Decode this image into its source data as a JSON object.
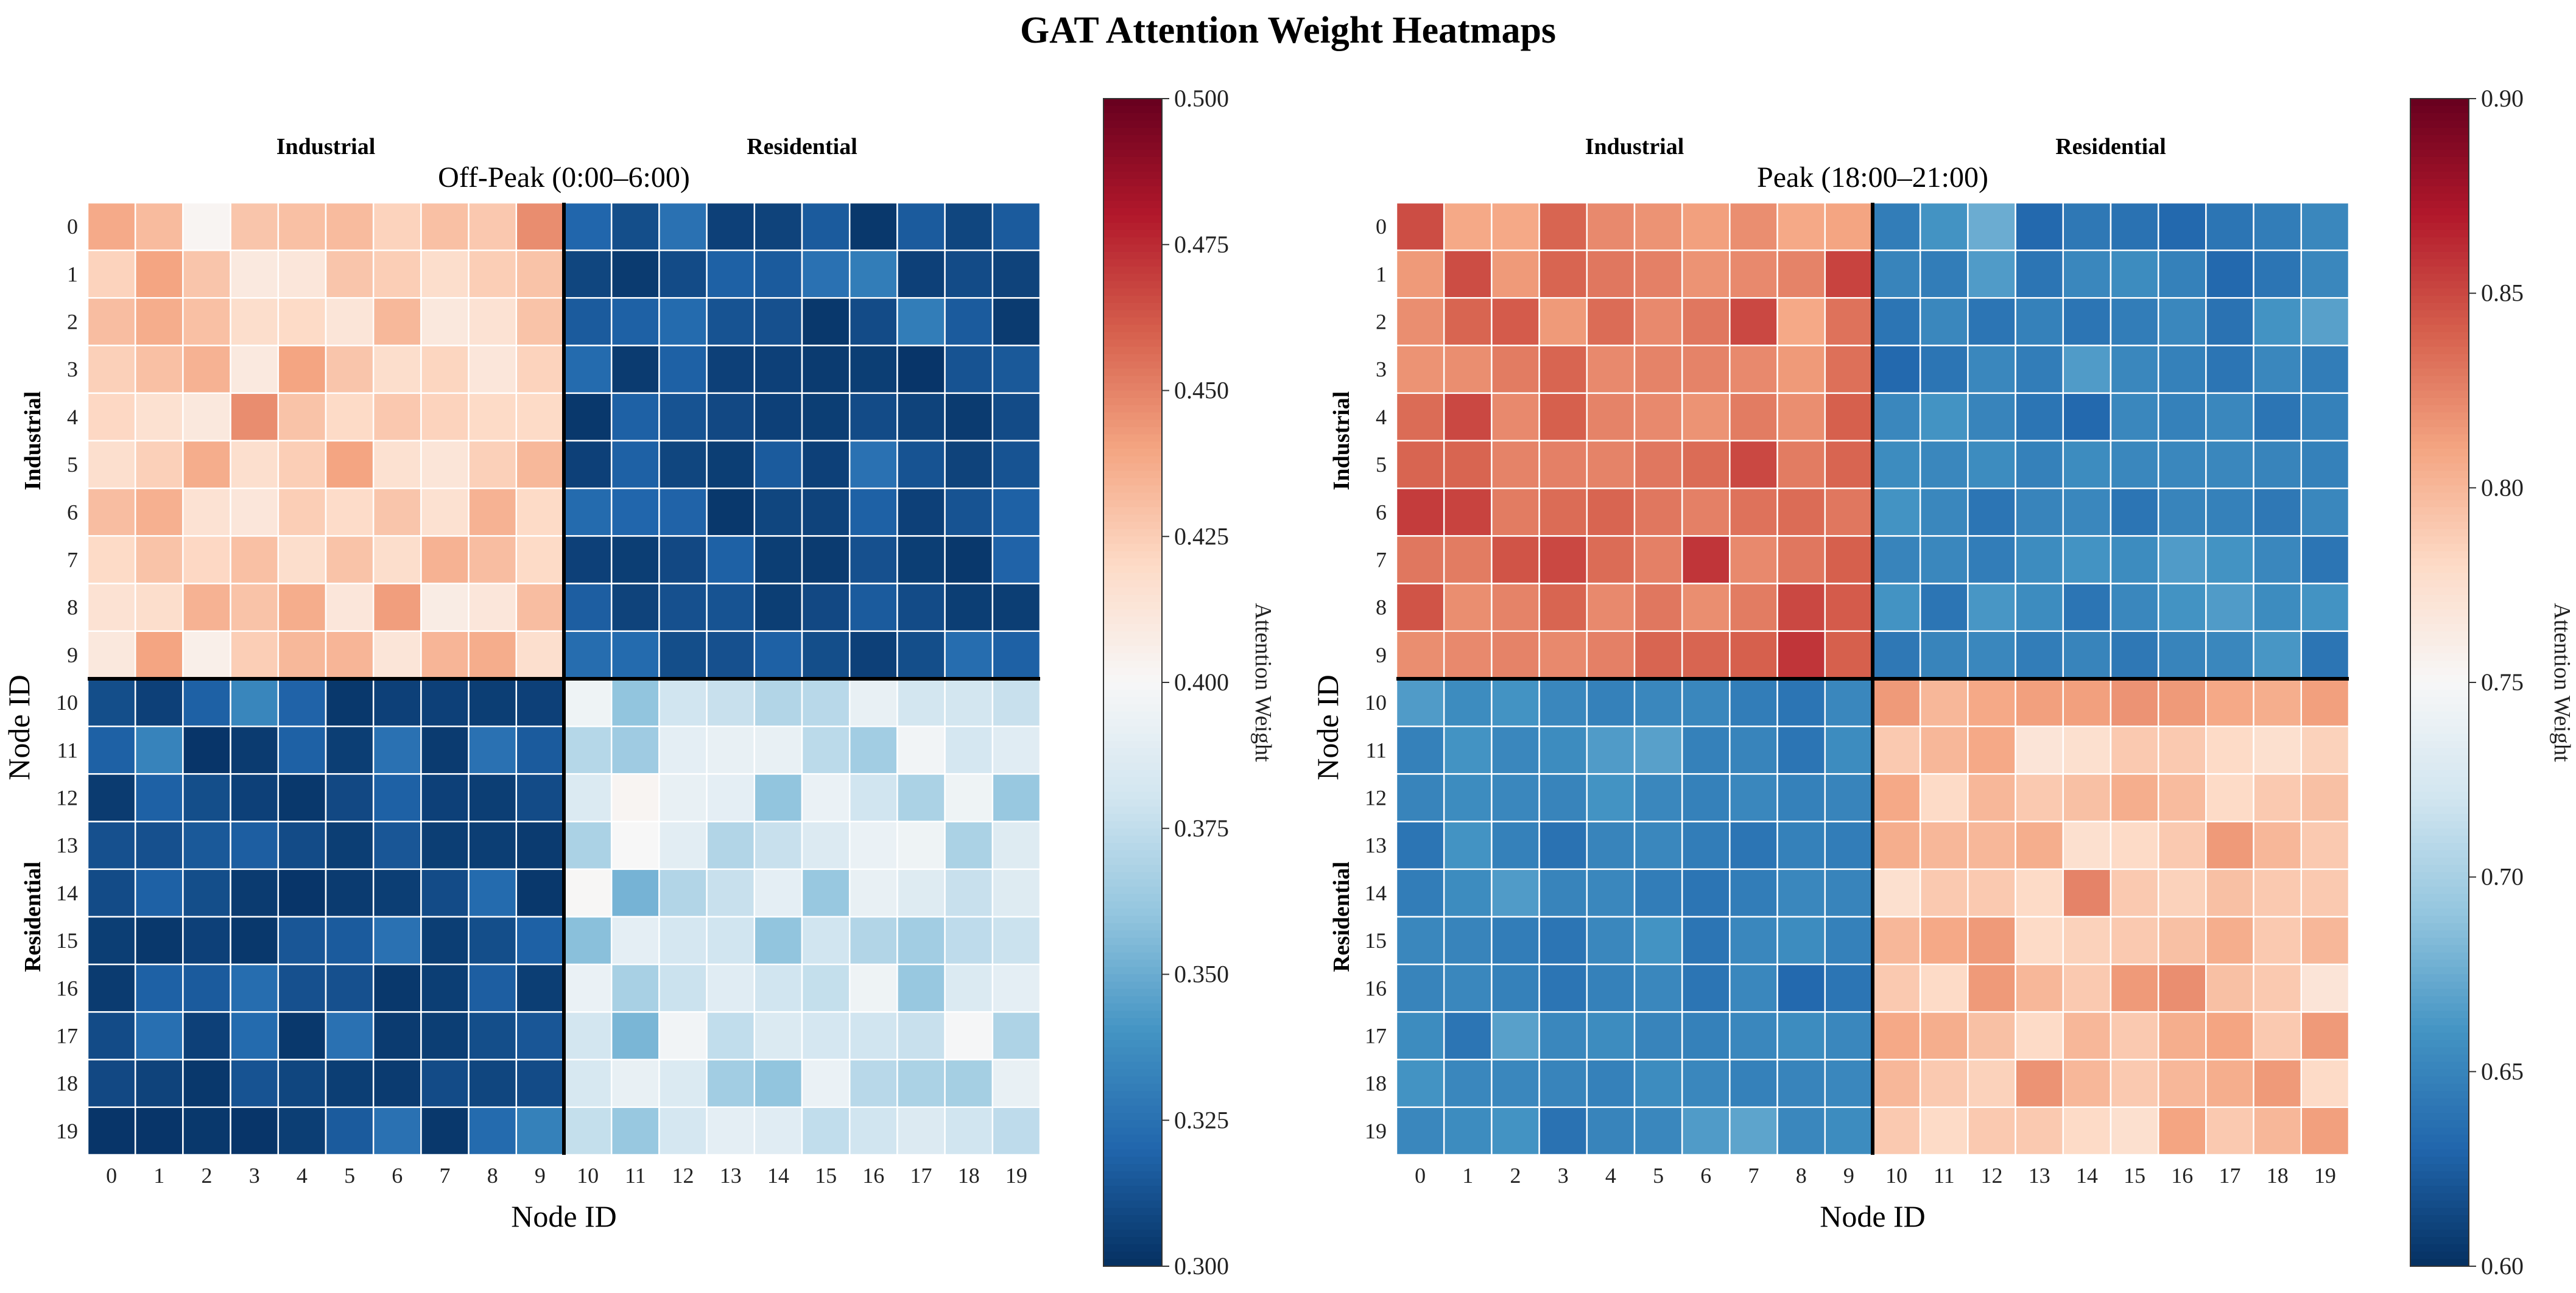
{
  "figure": {
    "title": "GAT Attention Weight Heatmaps"
  },
  "chart_data": [
    {
      "type": "heatmap",
      "title": "Off-Peak (0:00–6:00)",
      "xlabel": "Node ID",
      "ylabel": "Node ID",
      "x_ticks": [
        "0",
        "1",
        "2",
        "3",
        "4",
        "5",
        "6",
        "7",
        "8",
        "9",
        "10",
        "11",
        "12",
        "13",
        "14",
        "15",
        "16",
        "17",
        "18",
        "19"
      ],
      "y_ticks": [
        "0",
        "1",
        "2",
        "3",
        "4",
        "5",
        "6",
        "7",
        "8",
        "9",
        "10",
        "11",
        "12",
        "13",
        "14",
        "15",
        "16",
        "17",
        "18",
        "19"
      ],
      "group_labels_top": [
        "Industrial",
        "Residential"
      ],
      "group_labels_left": [
        "Industrial",
        "Residential"
      ],
      "group_split_index": 10,
      "colorbar": {
        "label": "Attention Weight",
        "range": [
          0.3,
          0.5
        ],
        "ticks": [
          "0.300",
          "0.325",
          "0.350",
          "0.375",
          "0.400",
          "0.425",
          "0.450",
          "0.475",
          "0.500"
        ],
        "colormap": "RdBu_r"
      },
      "values": [
        [
          0.438,
          0.432,
          0.402,
          0.428,
          0.43,
          0.432,
          0.423,
          0.43,
          0.427,
          0.447,
          0.32,
          0.311,
          0.325,
          0.306,
          0.307,
          0.316,
          0.303,
          0.316,
          0.308,
          0.316
        ],
        [
          0.423,
          0.44,
          0.428,
          0.41,
          0.412,
          0.428,
          0.425,
          0.418,
          0.425,
          0.429,
          0.308,
          0.304,
          0.31,
          0.318,
          0.316,
          0.325,
          0.33,
          0.306,
          0.31,
          0.307
        ],
        [
          0.431,
          0.437,
          0.43,
          0.418,
          0.42,
          0.413,
          0.433,
          0.411,
          0.415,
          0.429,
          0.316,
          0.318,
          0.322,
          0.313,
          0.312,
          0.303,
          0.31,
          0.33,
          0.316,
          0.304
        ],
        [
          0.424,
          0.43,
          0.435,
          0.41,
          0.44,
          0.428,
          0.418,
          0.422,
          0.412,
          0.423,
          0.322,
          0.304,
          0.318,
          0.306,
          0.306,
          0.304,
          0.305,
          0.302,
          0.313,
          0.315
        ],
        [
          0.421,
          0.416,
          0.411,
          0.447,
          0.429,
          0.42,
          0.427,
          0.423,
          0.42,
          0.42,
          0.303,
          0.318,
          0.313,
          0.309,
          0.306,
          0.305,
          0.31,
          0.307,
          0.304,
          0.31
        ],
        [
          0.417,
          0.424,
          0.437,
          0.417,
          0.425,
          0.44,
          0.416,
          0.413,
          0.424,
          0.433,
          0.306,
          0.318,
          0.308,
          0.305,
          0.316,
          0.306,
          0.325,
          0.313,
          0.307,
          0.313
        ],
        [
          0.431,
          0.436,
          0.415,
          0.412,
          0.425,
          0.419,
          0.428,
          0.416,
          0.435,
          0.42,
          0.322,
          0.32,
          0.319,
          0.303,
          0.308,
          0.307,
          0.318,
          0.306,
          0.313,
          0.318
        ],
        [
          0.42,
          0.429,
          0.421,
          0.43,
          0.418,
          0.429,
          0.418,
          0.435,
          0.431,
          0.42,
          0.306,
          0.305,
          0.309,
          0.318,
          0.305,
          0.304,
          0.312,
          0.305,
          0.303,
          0.319
        ],
        [
          0.415,
          0.418,
          0.435,
          0.429,
          0.437,
          0.412,
          0.442,
          0.408,
          0.412,
          0.431,
          0.317,
          0.307,
          0.312,
          0.313,
          0.305,
          0.309,
          0.316,
          0.31,
          0.305,
          0.305
        ],
        [
          0.411,
          0.44,
          0.406,
          0.425,
          0.433,
          0.434,
          0.413,
          0.434,
          0.437,
          0.417,
          0.323,
          0.322,
          0.311,
          0.312,
          0.318,
          0.311,
          0.306,
          0.311,
          0.323,
          0.318
        ],
        [
          0.311,
          0.306,
          0.318,
          0.334,
          0.319,
          0.303,
          0.306,
          0.306,
          0.305,
          0.306,
          0.395,
          0.36,
          0.38,
          0.377,
          0.37,
          0.372,
          0.392,
          0.381,
          0.381,
          0.377
        ],
        [
          0.318,
          0.333,
          0.302,
          0.304,
          0.318,
          0.305,
          0.325,
          0.304,
          0.325,
          0.316,
          0.371,
          0.364,
          0.39,
          0.392,
          0.392,
          0.373,
          0.365,
          0.397,
          0.382,
          0.388
        ],
        [
          0.304,
          0.318,
          0.311,
          0.306,
          0.303,
          0.309,
          0.318,
          0.306,
          0.305,
          0.31,
          0.385,
          0.402,
          0.392,
          0.39,
          0.36,
          0.393,
          0.38,
          0.368,
          0.395,
          0.362
        ],
        [
          0.312,
          0.312,
          0.315,
          0.317,
          0.31,
          0.305,
          0.314,
          0.305,
          0.305,
          0.304,
          0.368,
          0.4,
          0.389,
          0.37,
          0.377,
          0.386,
          0.393,
          0.395,
          0.368,
          0.387
        ],
        [
          0.31,
          0.318,
          0.311,
          0.304,
          0.302,
          0.304,
          0.305,
          0.31,
          0.322,
          0.303,
          0.401,
          0.353,
          0.37,
          0.377,
          0.39,
          0.362,
          0.392,
          0.387,
          0.377,
          0.387
        ],
        [
          0.305,
          0.303,
          0.306,
          0.303,
          0.314,
          0.316,
          0.325,
          0.305,
          0.311,
          0.318,
          0.358,
          0.39,
          0.382,
          0.38,
          0.36,
          0.38,
          0.37,
          0.365,
          0.374,
          0.378
        ],
        [
          0.304,
          0.318,
          0.316,
          0.323,
          0.312,
          0.312,
          0.303,
          0.305,
          0.317,
          0.305,
          0.393,
          0.367,
          0.378,
          0.388,
          0.38,
          0.376,
          0.395,
          0.362,
          0.385,
          0.39
        ],
        [
          0.31,
          0.324,
          0.306,
          0.322,
          0.303,
          0.325,
          0.304,
          0.305,
          0.311,
          0.314,
          0.381,
          0.354,
          0.397,
          0.375,
          0.385,
          0.382,
          0.38,
          0.377,
          0.399,
          0.369
        ],
        [
          0.309,
          0.307,
          0.303,
          0.313,
          0.308,
          0.305,
          0.304,
          0.31,
          0.308,
          0.31,
          0.383,
          0.392,
          0.385,
          0.365,
          0.36,
          0.393,
          0.372,
          0.368,
          0.366,
          0.392
        ],
        [
          0.302,
          0.302,
          0.303,
          0.302,
          0.305,
          0.316,
          0.325,
          0.303,
          0.322,
          0.332,
          0.376,
          0.362,
          0.382,
          0.39,
          0.388,
          0.375,
          0.38,
          0.386,
          0.38,
          0.374
        ]
      ]
    },
    {
      "type": "heatmap",
      "title": "Peak (18:00–21:00)",
      "xlabel": "Node ID",
      "ylabel": "Node ID",
      "x_ticks": [
        "0",
        "1",
        "2",
        "3",
        "4",
        "5",
        "6",
        "7",
        "8",
        "9",
        "10",
        "11",
        "12",
        "13",
        "14",
        "15",
        "16",
        "17",
        "18",
        "19"
      ],
      "y_ticks": [
        "0",
        "1",
        "2",
        "3",
        "4",
        "5",
        "6",
        "7",
        "8",
        "9",
        "10",
        "11",
        "12",
        "13",
        "14",
        "15",
        "16",
        "17",
        "18",
        "19"
      ],
      "group_labels_top": [
        "Industrial",
        "Residential"
      ],
      "group_labels_left": [
        "Industrial",
        "Residential"
      ],
      "group_split_index": 10,
      "colorbar": {
        "label": "Attention Weight",
        "range": [
          0.6,
          0.9
        ],
        "ticks": [
          "0.60",
          "0.65",
          "0.70",
          "0.75",
          "0.80",
          "0.85",
          "0.90"
        ],
        "colormap": "RdBu_r"
      },
      "values": [
        [
          0.848,
          0.808,
          0.808,
          0.838,
          0.822,
          0.818,
          0.812,
          0.82,
          0.808,
          0.81,
          0.645,
          0.66,
          0.675,
          0.632,
          0.642,
          0.638,
          0.632,
          0.64,
          0.645,
          0.652
        ],
        [
          0.815,
          0.848,
          0.815,
          0.838,
          0.83,
          0.826,
          0.818,
          0.822,
          0.825,
          0.852,
          0.65,
          0.645,
          0.665,
          0.64,
          0.652,
          0.655,
          0.648,
          0.632,
          0.64,
          0.652
        ],
        [
          0.82,
          0.838,
          0.842,
          0.815,
          0.835,
          0.822,
          0.83,
          0.85,
          0.808,
          0.832,
          0.64,
          0.652,
          0.64,
          0.648,
          0.64,
          0.645,
          0.652,
          0.638,
          0.66,
          0.668
        ],
        [
          0.818,
          0.82,
          0.828,
          0.838,
          0.822,
          0.825,
          0.825,
          0.822,
          0.815,
          0.833,
          0.632,
          0.64,
          0.652,
          0.645,
          0.665,
          0.652,
          0.648,
          0.64,
          0.652,
          0.645
        ],
        [
          0.835,
          0.85,
          0.822,
          0.84,
          0.825,
          0.822,
          0.818,
          0.828,
          0.82,
          0.84,
          0.652,
          0.66,
          0.65,
          0.64,
          0.632,
          0.652,
          0.648,
          0.652,
          0.64,
          0.648
        ],
        [
          0.838,
          0.838,
          0.825,
          0.826,
          0.825,
          0.83,
          0.835,
          0.85,
          0.828,
          0.838,
          0.655,
          0.652,
          0.655,
          0.648,
          0.655,
          0.652,
          0.652,
          0.652,
          0.65,
          0.648
        ],
        [
          0.855,
          0.852,
          0.828,
          0.835,
          0.838,
          0.83,
          0.826,
          0.832,
          0.835,
          0.83,
          0.66,
          0.652,
          0.64,
          0.65,
          0.652,
          0.64,
          0.65,
          0.648,
          0.642,
          0.652
        ],
        [
          0.83,
          0.828,
          0.845,
          0.85,
          0.835,
          0.826,
          0.858,
          0.822,
          0.83,
          0.84,
          0.65,
          0.652,
          0.645,
          0.655,
          0.66,
          0.655,
          0.665,
          0.66,
          0.652,
          0.64
        ],
        [
          0.845,
          0.82,
          0.825,
          0.838,
          0.822,
          0.83,
          0.82,
          0.828,
          0.85,
          0.842,
          0.66,
          0.64,
          0.662,
          0.655,
          0.64,
          0.652,
          0.66,
          0.665,
          0.655,
          0.66
        ],
        [
          0.82,
          0.822,
          0.825,
          0.822,
          0.826,
          0.838,
          0.838,
          0.84,
          0.858,
          0.84,
          0.642,
          0.65,
          0.652,
          0.645,
          0.65,
          0.642,
          0.65,
          0.652,
          0.662,
          0.64
        ],
        [
          0.665,
          0.655,
          0.66,
          0.652,
          0.648,
          0.652,
          0.652,
          0.645,
          0.64,
          0.652,
          0.815,
          0.8,
          0.808,
          0.812,
          0.812,
          0.818,
          0.815,
          0.808,
          0.805,
          0.812
        ],
        [
          0.648,
          0.66,
          0.652,
          0.655,
          0.665,
          0.668,
          0.648,
          0.65,
          0.64,
          0.655,
          0.79,
          0.8,
          0.808,
          0.77,
          0.775,
          0.79,
          0.79,
          0.78,
          0.775,
          0.785
        ],
        [
          0.65,
          0.655,
          0.652,
          0.65,
          0.66,
          0.652,
          0.648,
          0.652,
          0.648,
          0.65,
          0.808,
          0.78,
          0.8,
          0.79,
          0.795,
          0.805,
          0.798,
          0.78,
          0.79,
          0.795
        ],
        [
          0.64,
          0.66,
          0.648,
          0.638,
          0.65,
          0.652,
          0.645,
          0.64,
          0.648,
          0.645,
          0.805,
          0.8,
          0.8,
          0.805,
          0.775,
          0.78,
          0.79,
          0.815,
          0.8,
          0.79
        ],
        [
          0.645,
          0.655,
          0.665,
          0.65,
          0.652,
          0.645,
          0.64,
          0.645,
          0.652,
          0.65,
          0.775,
          0.79,
          0.79,
          0.78,
          0.825,
          0.79,
          0.785,
          0.795,
          0.79,
          0.79
        ],
        [
          0.652,
          0.65,
          0.645,
          0.64,
          0.652,
          0.66,
          0.64,
          0.652,
          0.655,
          0.648,
          0.8,
          0.808,
          0.815,
          0.78,
          0.785,
          0.79,
          0.795,
          0.805,
          0.79,
          0.8
        ],
        [
          0.65,
          0.652,
          0.648,
          0.64,
          0.648,
          0.652,
          0.64,
          0.652,
          0.632,
          0.64,
          0.79,
          0.78,
          0.815,
          0.8,
          0.79,
          0.815,
          0.82,
          0.795,
          0.79,
          0.77
        ],
        [
          0.655,
          0.64,
          0.668,
          0.652,
          0.655,
          0.65,
          0.648,
          0.652,
          0.655,
          0.652,
          0.808,
          0.805,
          0.795,
          0.78,
          0.8,
          0.79,
          0.805,
          0.81,
          0.79,
          0.815
        ],
        [
          0.66,
          0.652,
          0.652,
          0.65,
          0.648,
          0.655,
          0.652,
          0.648,
          0.65,
          0.652,
          0.8,
          0.79,
          0.785,
          0.818,
          0.8,
          0.79,
          0.8,
          0.805,
          0.815,
          0.78
        ],
        [
          0.652,
          0.655,
          0.66,
          0.638,
          0.65,
          0.652,
          0.665,
          0.67,
          0.652,
          0.655,
          0.79,
          0.78,
          0.79,
          0.79,
          0.78,
          0.775,
          0.81,
          0.79,
          0.8,
          0.812
        ]
      ]
    }
  ]
}
